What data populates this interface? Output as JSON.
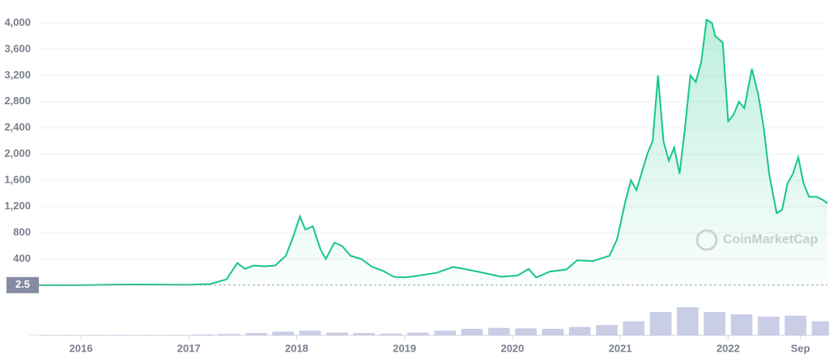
{
  "chart_data": {
    "type": "area",
    "watermark": "CoinMarketCap",
    "marker_value": 2.5,
    "xlim": [
      2015.61,
      2022.92
    ],
    "xticks": [
      {
        "value": 2016,
        "label": "2016"
      },
      {
        "value": 2017,
        "label": "2017"
      },
      {
        "value": 2018,
        "label": "2018"
      },
      {
        "value": 2019,
        "label": "2019"
      },
      {
        "value": 2020,
        "label": "2020"
      },
      {
        "value": 2021,
        "label": "2021"
      },
      {
        "value": 2022,
        "label": "2022"
      },
      {
        "value": 2022.67,
        "label": "Sep"
      }
    ],
    "ylim": [
      0,
      4350
    ],
    "yticks": [
      {
        "value": 400,
        "label": "400"
      },
      {
        "value": 800,
        "label": "800"
      },
      {
        "value": 1200,
        "label": "1,200"
      },
      {
        "value": 1600,
        "label": "1,600"
      },
      {
        "value": 2000,
        "label": "2,000"
      },
      {
        "value": 2400,
        "label": "2,400"
      },
      {
        "value": 2800,
        "label": "2,800"
      },
      {
        "value": 3200,
        "label": "3,200"
      },
      {
        "value": 3600,
        "label": "3,600"
      },
      {
        "value": 4000,
        "label": "4,000"
      }
    ],
    "y2lim": [
      0,
      100
    ],
    "grid": true,
    "series": [
      {
        "color": "#16c784",
        "x": [
          2015.61,
          2016.0,
          2016.3,
          2016.5,
          2017.0,
          2017.2,
          2017.35,
          2017.45,
          2017.52,
          2017.6,
          2017.7,
          2017.8,
          2017.9,
          2017.97,
          2018.03,
          2018.08,
          2018.15,
          2018.22,
          2018.27,
          2018.35,
          2018.42,
          2018.5,
          2018.6,
          2018.7,
          2018.8,
          2018.9,
          2019.0,
          2019.1,
          2019.3,
          2019.45,
          2019.55,
          2019.7,
          2019.9,
          2020.05,
          2020.15,
          2020.22,
          2020.35,
          2020.5,
          2020.6,
          2020.75,
          2020.9,
          2020.97,
          2021.05,
          2021.1,
          2021.15,
          2021.25,
          2021.3,
          2021.35,
          2021.4,
          2021.45,
          2021.5,
          2021.55,
          2021.6,
          2021.65,
          2021.7,
          2021.75,
          2021.8,
          2021.85,
          2021.88,
          2021.95,
          2022.0,
          2022.05,
          2022.1,
          2022.15,
          2022.22,
          2022.28,
          2022.33,
          2022.38,
          2022.45,
          2022.5,
          2022.55,
          2022.6,
          2022.65,
          2022.7,
          2022.75,
          2022.82,
          2022.88,
          2022.92
        ],
        "values": [
          1,
          1,
          10,
          12,
          8,
          20,
          90,
          340,
          250,
          300,
          290,
          300,
          450,
          750,
          1050,
          850,
          900,
          550,
          400,
          650,
          600,
          450,
          400,
          280,
          220,
          130,
          120,
          140,
          190,
          280,
          250,
          200,
          130,
          150,
          250,
          120,
          210,
          240,
          380,
          370,
          450,
          700,
          1300,
          1600,
          1450,
          2000,
          2200,
          3200,
          2200,
          1900,
          2100,
          1700,
          2400,
          3200,
          3100,
          3400,
          4050,
          4000,
          3800,
          3700,
          2500,
          2600,
          2800,
          2700,
          3300,
          2900,
          2400,
          1700,
          1100,
          1150,
          1550,
          1700,
          1950,
          1550,
          1350,
          1350,
          1300,
          1250
        ]
      },
      {
        "color": "#c9cde6",
        "axis": "y2",
        "x": [
          2015.625,
          2015.875,
          2016.125,
          2016.375,
          2016.625,
          2016.875,
          2017.125,
          2017.375,
          2017.625,
          2017.875,
          2018.125,
          2018.375,
          2018.625,
          2018.875,
          2019.125,
          2019.375,
          2019.625,
          2019.875,
          2020.125,
          2020.375,
          2020.625,
          2020.875,
          2021.125,
          2021.375,
          2021.625,
          2021.875,
          2022.125,
          2022.375,
          2022.625,
          2022.875
        ],
        "values": [
          1,
          1,
          1,
          1,
          1,
          1,
          2,
          3,
          5,
          8,
          10,
          6,
          5,
          4,
          6,
          10,
          14,
          16,
          15,
          14,
          18,
          22,
          30,
          50,
          60,
          50,
          45,
          40,
          42,
          30
        ]
      }
    ]
  }
}
